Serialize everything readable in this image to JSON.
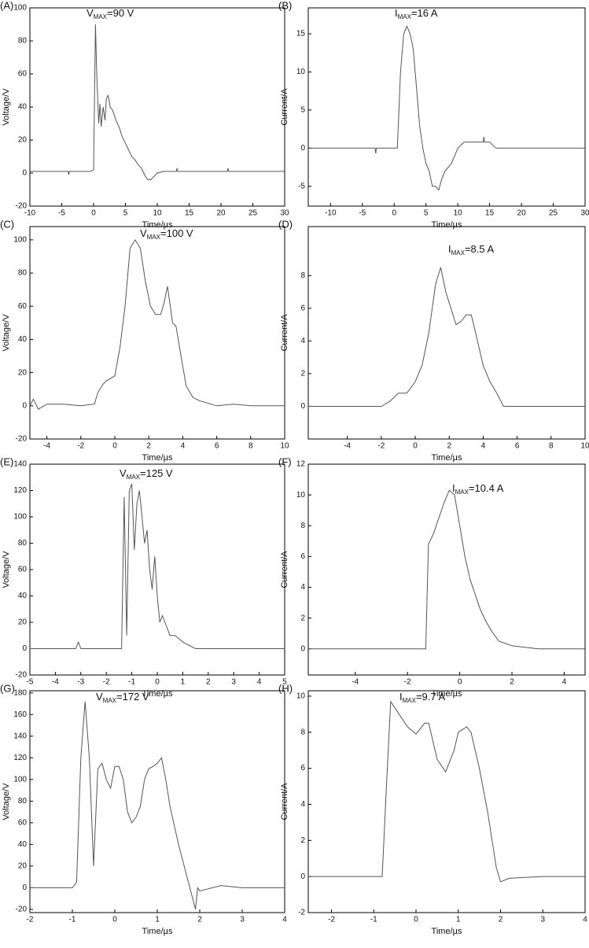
{
  "chart_data": [
    {
      "type": "line",
      "panel_label": "(A)",
      "annotation": {
        "symbol": "V",
        "subscript": "MAX",
        "text": "=90 V"
      },
      "x_label": "Time/µs",
      "y_label": "Voltage/V",
      "xlim": [
        -10,
        30
      ],
      "xticks": [
        -10,
        -5,
        0,
        5,
        10,
        15,
        20,
        25,
        30
      ],
      "ylim": [
        -20,
        100
      ],
      "yticks": [
        -20,
        0,
        20,
        40,
        60,
        80,
        100
      ],
      "color": "#555555",
      "x": [
        -10,
        -4,
        -3.9,
        -3.8,
        -0.5,
        0,
        0.3,
        0.5,
        0.8,
        1,
        1.2,
        1.5,
        1.8,
        2,
        2.3,
        2.6,
        3,
        3.5,
        4,
        4.5,
        5,
        5.5,
        6,
        6.5,
        7,
        7.5,
        8,
        8.5,
        9,
        9.5,
        10,
        11,
        13,
        13.1,
        13.2,
        21,
        21.1,
        21.2,
        30
      ],
      "values": [
        1,
        1,
        -1,
        1,
        1,
        2,
        90,
        60,
        30,
        42,
        28,
        40,
        32,
        45,
        47,
        40,
        38,
        32,
        28,
        22,
        18,
        14,
        10,
        8,
        5,
        3,
        -1,
        -4,
        -4,
        -2,
        0,
        1,
        1,
        3,
        1,
        1,
        3,
        1,
        1
      ]
    },
    {
      "type": "line",
      "panel_label": "(B)",
      "annotation": {
        "symbol": "I",
        "subscript": "MAX",
        "text": "=16 A"
      },
      "x_label": "Time/µs",
      "y_label": "Current/A",
      "xlim": [
        -13.5,
        30
      ],
      "xticks": [
        -10,
        -5,
        0,
        5,
        10,
        15,
        20,
        25,
        30
      ],
      "ylim": [
        -7.6,
        18.4
      ],
      "yticks": [
        -5,
        0,
        5,
        10,
        15
      ],
      "color": "#555555",
      "x": [
        -13.5,
        -3,
        -2.9,
        -2.8,
        0.5,
        1,
        1.5,
        2,
        2.5,
        3,
        3.5,
        4,
        4.5,
        5,
        5.5,
        6,
        6.5,
        7,
        7.5,
        8,
        9,
        10,
        11,
        14,
        14.1,
        14.2,
        15,
        16,
        30
      ],
      "values": [
        0,
        0,
        -0.7,
        0,
        0,
        10,
        15,
        16,
        15,
        13,
        8,
        3,
        0,
        -2,
        -3,
        -5,
        -5,
        -5.5,
        -4,
        -3,
        -2,
        0,
        0.8,
        0.8,
        1.5,
        0.8,
        0.8,
        0,
        0
      ]
    },
    {
      "type": "line",
      "panel_label": "(C)",
      "annotation": {
        "symbol": "V",
        "subscript": "MAX",
        "text": "=100 V"
      },
      "x_label": "Time/µs",
      "y_label": "Voltage/V",
      "xlim": [
        -5,
        10
      ],
      "xticks": [
        -4,
        -2,
        0,
        2,
        4,
        6,
        8,
        10
      ],
      "ylim": [
        -20,
        108
      ],
      "yticks": [
        -20,
        0,
        20,
        40,
        60,
        80,
        100
      ],
      "color": "#555555",
      "x": [
        -5,
        -4.8,
        -4.5,
        -4,
        -3,
        -2,
        -1.2,
        -1,
        -0.7,
        -0.5,
        0,
        0.3,
        0.6,
        0.9,
        1.2,
        1.5,
        1.8,
        2.1,
        2.4,
        2.7,
        2.9,
        3.1,
        3.4,
        3.6,
        3.9,
        4.2,
        4.6,
        5,
        6,
        7,
        8,
        9,
        10
      ],
      "values": [
        0,
        4,
        -2,
        1,
        1,
        0,
        1,
        8,
        13,
        15,
        18,
        35,
        60,
        95,
        100,
        95,
        75,
        60,
        55,
        55,
        62,
        72,
        50,
        48,
        30,
        12,
        5,
        3,
        0,
        1,
        0,
        0,
        0
      ]
    },
    {
      "type": "line",
      "panel_label": "(D)",
      "annotation": {
        "symbol": "I",
        "subscript": "MAX",
        "text": "=8.5 A"
      },
      "x_label": "Time/µs",
      "y_label": "Current/A",
      "xlim": [
        -6.3,
        10
      ],
      "xticks": [
        -4,
        -2,
        0,
        2,
        4,
        6,
        8,
        10
      ],
      "ylim": [
        -2,
        11
      ],
      "yticks": [
        0,
        2,
        4,
        6,
        8
      ],
      "color": "#555555",
      "x": [
        -6.3,
        -2,
        -1.5,
        -1,
        -0.5,
        0,
        0.4,
        0.8,
        1.2,
        1.5,
        1.8,
        2.1,
        2.4,
        2.7,
        3,
        3.3,
        3.6,
        4,
        4.4,
        4.8,
        5.2,
        6,
        8,
        10
      ],
      "values": [
        0,
        0,
        0.3,
        0.8,
        0.8,
        1.5,
        2.5,
        4.5,
        7.5,
        8.5,
        7,
        6,
        5,
        5.2,
        5.6,
        5.6,
        4.3,
        2.5,
        1.5,
        0.8,
        0,
        0,
        0,
        0
      ]
    },
    {
      "type": "line",
      "panel_label": "(E)",
      "annotation": {
        "symbol": "V",
        "subscript": "MAX",
        "text": "=125 V"
      },
      "x_label": "Time/µs",
      "y_label": "Voltage/V",
      "xlim": [
        -5,
        5
      ],
      "xticks": [
        -5,
        -4,
        -3,
        -2,
        -1,
        0,
        1,
        2,
        3,
        4,
        5
      ],
      "ylim": [
        -20,
        140
      ],
      "yticks": [
        -20,
        0,
        20,
        40,
        60,
        80,
        100,
        120,
        140
      ],
      "color": "#555555",
      "x": [
        -5,
        -3.2,
        -3.1,
        -3,
        -1.6,
        -1.4,
        -1.3,
        -1.2,
        -1.1,
        -1,
        -0.9,
        -0.8,
        -0.7,
        -0.6,
        -0.5,
        -0.4,
        -0.3,
        -0.2,
        -0.1,
        0,
        0.1,
        0.2,
        0.3,
        0.5,
        0.7,
        1,
        1.5,
        3,
        5
      ],
      "values": [
        0,
        0,
        5,
        0,
        0,
        0,
        115,
        10,
        120,
        125,
        75,
        110,
        120,
        100,
        80,
        90,
        60,
        45,
        70,
        40,
        20,
        25,
        20,
        10,
        10,
        5,
        0,
        0,
        0
      ]
    },
    {
      "type": "line",
      "panel_label": "(F)",
      "annotation": {
        "symbol": "I",
        "subscript": "MAX",
        "text": "=10.4 A"
      },
      "x_label": "Time/µs",
      "y_label": "Current/A",
      "xlim": [
        -5.8,
        4.8
      ],
      "xticks": [
        -4,
        -2,
        0,
        2,
        4
      ],
      "ylim": [
        -1.7,
        12
      ],
      "yticks": [
        0,
        2,
        4,
        6,
        8,
        10,
        12
      ],
      "color": "#555555",
      "x": [
        -5.8,
        -2,
        -1.3,
        -1.2,
        -1,
        -0.8,
        -0.6,
        -0.4,
        -0.2,
        0,
        0.2,
        0.4,
        0.6,
        0.8,
        1,
        1.2,
        1.5,
        2,
        3,
        4.8
      ],
      "values": [
        0,
        0,
        0,
        6.8,
        7.5,
        8.5,
        9.5,
        10.3,
        10,
        8,
        6,
        4.5,
        3.5,
        2.5,
        1.8,
        1.2,
        0.5,
        0.2,
        0,
        0
      ]
    },
    {
      "type": "line",
      "panel_label": "(G)",
      "annotation": {
        "symbol": "V",
        "subscript": "MAX",
        "text": "=172 V"
      },
      "x_label": "Time/µs",
      "y_label": "Voltage/V",
      "xlim": [
        -2,
        4
      ],
      "xticks": [
        -2,
        -1,
        0,
        1,
        2,
        3,
        4
      ],
      "ylim": [
        -23,
        182
      ],
      "yticks": [
        -20,
        0,
        20,
        40,
        60,
        80,
        100,
        120,
        140,
        160,
        180
      ],
      "color": "#555555",
      "x": [
        -2,
        -1,
        -0.9,
        -0.8,
        -0.7,
        -0.6,
        -0.5,
        -0.4,
        -0.3,
        -0.2,
        -0.1,
        0,
        0.1,
        0.2,
        0.3,
        0.4,
        0.5,
        0.6,
        0.7,
        0.8,
        0.9,
        1,
        1.1,
        1.2,
        1.3,
        1.5,
        1.7,
        1.9,
        1.95,
        2,
        2.5,
        3,
        4
      ],
      "values": [
        0,
        0,
        5,
        120,
        172,
        120,
        20,
        110,
        115,
        100,
        92,
        112,
        112,
        100,
        70,
        60,
        65,
        75,
        100,
        110,
        112,
        115,
        120,
        100,
        75,
        40,
        10,
        -20,
        0,
        -3,
        2,
        0,
        0
      ]
    },
    {
      "type": "line",
      "panel_label": "(H)",
      "annotation": {
        "symbol": "I",
        "subscript": "MAX",
        "text": "=9.7 A"
      },
      "x_label": "Time/µs",
      "y_label": "Current/A",
      "xlim": [
        -2.55,
        4
      ],
      "xticks": [
        -2,
        -1,
        0,
        1,
        2,
        3,
        4
      ],
      "ylim": [
        -2,
        10.3
      ],
      "yticks": [
        -2,
        0,
        2,
        4,
        6,
        8,
        10
      ],
      "color": "#555555",
      "x": [
        -2.55,
        -1,
        -0.8,
        -0.7,
        -0.6,
        -0.4,
        -0.2,
        0,
        0.2,
        0.3,
        0.5,
        0.7,
        0.9,
        1,
        1.2,
        1.3,
        1.5,
        1.7,
        1.9,
        2,
        2.2,
        3,
        4
      ],
      "values": [
        0,
        0,
        0,
        5,
        9.7,
        9,
        8.3,
        7.9,
        8.5,
        8.5,
        6.5,
        5.8,
        7,
        8,
        8.3,
        8,
        6,
        3.5,
        0.5,
        -0.3,
        -0.1,
        0,
        0
      ]
    }
  ]
}
